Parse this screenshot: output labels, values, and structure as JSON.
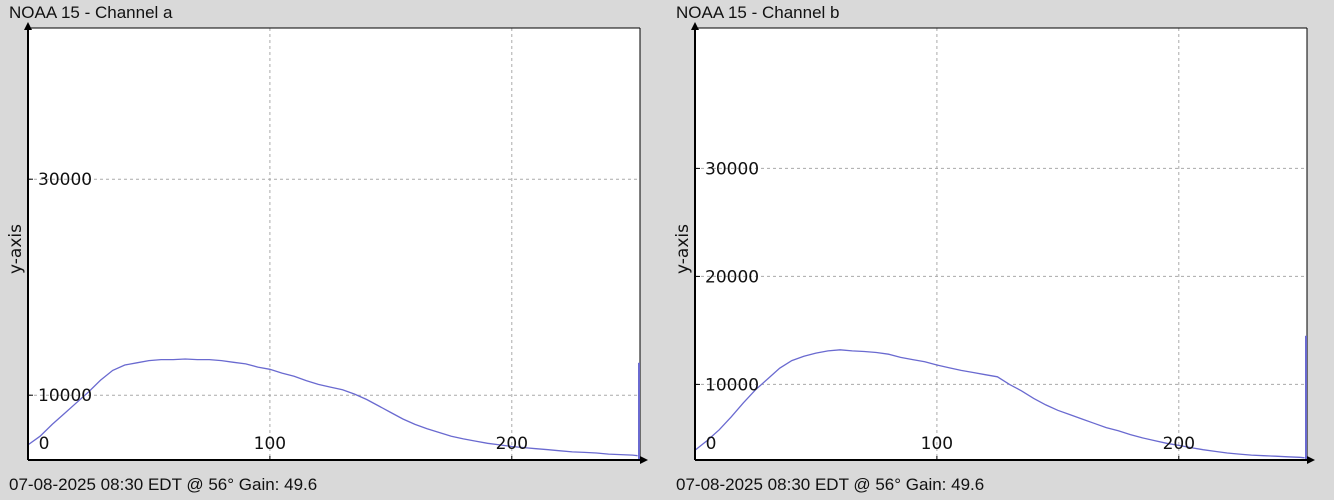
{
  "charts": [
    {
      "title": "NOAA 15 - Channel a",
      "footer": "07-08-2025 08:30 EDT @ 56° Gain: 49.6",
      "ylabel": "y-axis",
      "colors": {
        "line": "#6a6ad0",
        "grid": "#aaaaaa",
        "axis": "#000000",
        "background": "#ffffff"
      },
      "chart_data": {
        "type": "line",
        "title": "NOAA 15 - Channel a",
        "ylabel": "y-axis",
        "xlim": [
          0,
          253
        ],
        "ylim": [
          4000,
          44000
        ],
        "xticks": [
          0,
          100,
          200
        ],
        "yticks": [
          10000,
          30000
        ],
        "grid": true,
        "series": [
          {
            "x": [
              0,
              5,
              10,
              15,
              20,
              25,
              30,
              35,
              40,
              45,
              50,
              55,
              60,
              65,
              70,
              75,
              80,
              85,
              90,
              95,
              100,
              105,
              110,
              115,
              120,
              125,
              130,
              135,
              140,
              145,
              150,
              155,
              160,
              165,
              170,
              175,
              180,
              185,
              190,
              195,
              200,
              205,
              210,
              215,
              220,
              225,
              230,
              235,
              240,
              245,
              250,
              252
            ],
            "y": [
              5400,
              6200,
              7300,
              8300,
              9300,
              10300,
              11400,
              12300,
              12800,
              13000,
              13200,
              13300,
              13300,
              13350,
              13300,
              13300,
              13200,
              13050,
              12900,
              12600,
              12400,
              12050,
              11750,
              11350,
              11000,
              10750,
              10500,
              10100,
              9600,
              9000,
              8400,
              7800,
              7300,
              6900,
              6550,
              6200,
              5950,
              5750,
              5550,
              5400,
              5250,
              5150,
              5050,
              4950,
              4850,
              4750,
              4700,
              4650,
              4550,
              4500,
              4450,
              4400
            ]
          }
        ],
        "spike_x": 253,
        "spike_y": 13000
      }
    },
    {
      "title": "NOAA 15 - Channel b",
      "footer": "07-08-2025 08:30 EDT @ 56° Gain: 49.6",
      "ylabel": "y-axis",
      "colors": {
        "line": "#6a6ad0",
        "grid": "#aaaaaa",
        "axis": "#000000",
        "background": "#ffffff"
      },
      "chart_data": {
        "type": "line",
        "title": "NOAA 15 - Channel b",
        "ylabel": "y-axis",
        "xlim": [
          0,
          253
        ],
        "ylim": [
          3000,
          43000
        ],
        "xticks": [
          0,
          100,
          200
        ],
        "yticks": [
          10000,
          20000,
          30000
        ],
        "grid": true,
        "series": [
          {
            "x": [
              0,
              5,
              10,
              15,
              20,
              25,
              30,
              35,
              40,
              45,
              50,
              55,
              60,
              65,
              70,
              75,
              80,
              85,
              90,
              95,
              100,
              105,
              110,
              115,
              120,
              125,
              130,
              135,
              140,
              145,
              150,
              155,
              160,
              165,
              170,
              175,
              180,
              185,
              190,
              195,
              200,
              205,
              210,
              215,
              220,
              225,
              230,
              235,
              240,
              245,
              250,
              252
            ],
            "y": [
              3900,
              4800,
              5800,
              7000,
              8300,
              9500,
              10500,
              11500,
              12200,
              12600,
              12900,
              13100,
              13200,
              13100,
              13050,
              12950,
              12800,
              12500,
              12300,
              12100,
              11800,
              11550,
              11300,
              11100,
              10900,
              10700,
              10000,
              9400,
              8700,
              8100,
              7600,
              7200,
              6800,
              6400,
              6000,
              5700,
              5350,
              5050,
              4800,
              4550,
              4350,
              4150,
              3950,
              3800,
              3650,
              3550,
              3450,
              3400,
              3350,
              3300,
              3250,
              3200
            ],
            "name": ""
          }
        ],
        "spike_x": 253,
        "spike_y": 14500
      }
    }
  ]
}
